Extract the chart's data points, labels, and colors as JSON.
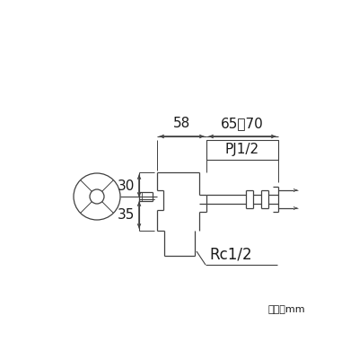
{
  "bg_color": "#ffffff",
  "line_color": "#404040",
  "text_color": "#1a1a1a",
  "dim_label_58": "58",
  "dim_label_6570": "65～70",
  "dim_label_30": "30",
  "dim_label_35": "35",
  "label_PJ": "PJ1/2",
  "label_Rc": "Rc1/2",
  "unit_label": "単位：mm",
  "fig_width": 4.0,
  "fig_height": 4.0,
  "dpi": 100
}
